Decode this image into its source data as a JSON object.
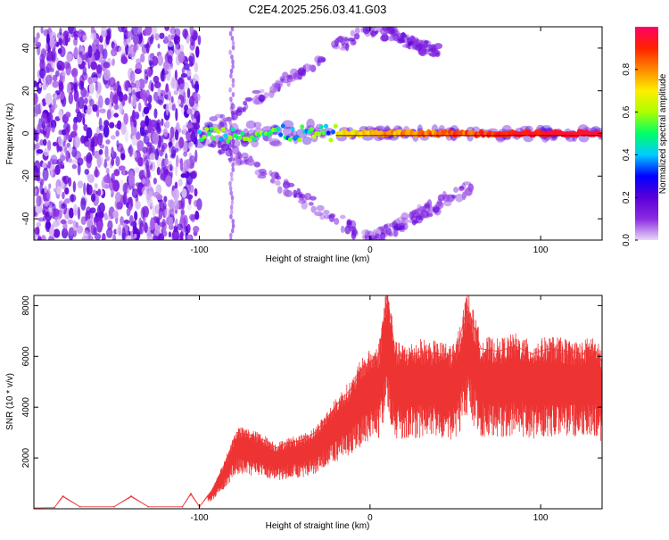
{
  "title": "C2E4.2025.256.03.41.G03",
  "chart_data": [
    {
      "type": "heatmap",
      "xlabel": "Height of straight line (km)",
      "ylabel": "Frequency (Hz)",
      "xlim": [
        -197,
        136
      ],
      "ylim": [
        -50,
        50
      ],
      "xticks": [
        -100,
        0,
        100
      ],
      "yticks": [
        -40,
        -20,
        0,
        20,
        40
      ],
      "colorbar": {
        "label": "Normalized spectral amplitude",
        "range": [
          0,
          1
        ],
        "ticks": [
          0,
          0.2,
          0.4,
          0.6,
          0.8
        ],
        "tick_labels": [
          "0.0",
          "0.2",
          "0.4",
          "0.6",
          "0.8"
        ],
        "colormap": [
          "#e8d8f8",
          "#8a2be2",
          "#5a00d8",
          "#0000ff",
          "#00ccff",
          "#00ff66",
          "#aaff00",
          "#ffee00",
          "#ff8800",
          "#ff2200",
          "#ff0066"
        ]
      },
      "features": {
        "noise_region_x": [
          -197,
          -100
        ],
        "main_band": {
          "x": [
            -100,
            136
          ],
          "y": 0,
          "peak_normalized_amplitude": 0.95
        },
        "upper_arms": [
          {
            "x": [
              -100,
              0
            ],
            "y": [
              0,
              50
            ]
          },
          {
            "x": [
              0,
              40
            ],
            "y": [
              50,
              38
            ]
          }
        ],
        "lower_arms": [
          {
            "x": [
              -100,
              0
            ],
            "y": [
              0,
              -50
            ]
          },
          {
            "x": [
              0,
              60
            ],
            "y": [
              -50,
              -25
            ]
          }
        ],
        "vertical_stripe_x": -81
      }
    },
    {
      "type": "line",
      "xlabel": "Height of straight line (km)",
      "ylabel": "SNR (10 * v/v)",
      "xlim": [
        -197,
        136
      ],
      "ylim": [
        0,
        8400
      ],
      "xticks": [
        -100,
        0,
        100
      ],
      "yticks": [
        2000,
        4000,
        6000,
        8000
      ],
      "color": "#ee3333",
      "series": [
        {
          "x": [
            -197,
            -185,
            -180,
            -170,
            -150,
            -140,
            -130,
            -110,
            -105,
            -100,
            -92,
            -85,
            -78,
            -70,
            -62,
            -55,
            -48,
            -40,
            -32,
            -25,
            -18,
            -10,
            -5,
            0,
            5,
            10,
            15,
            20,
            30,
            40,
            50,
            57,
            65,
            75,
            85,
            95,
            105,
            115,
            125,
            130,
            136
          ],
          "y": [
            30,
            50,
            500,
            80,
            80,
            500,
            80,
            80,
            600,
            80,
            800,
            1800,
            3000,
            2900,
            2700,
            2400,
            2600,
            2700,
            3000,
            3600,
            4200,
            4800,
            5500,
            5800,
            6000,
            8400,
            6100,
            6000,
            6200,
            6100,
            6000,
            8000,
            6300,
            6200,
            6400,
            6100,
            6300,
            6200,
            6100,
            6400,
            5800
          ]
        }
      ]
    }
  ]
}
